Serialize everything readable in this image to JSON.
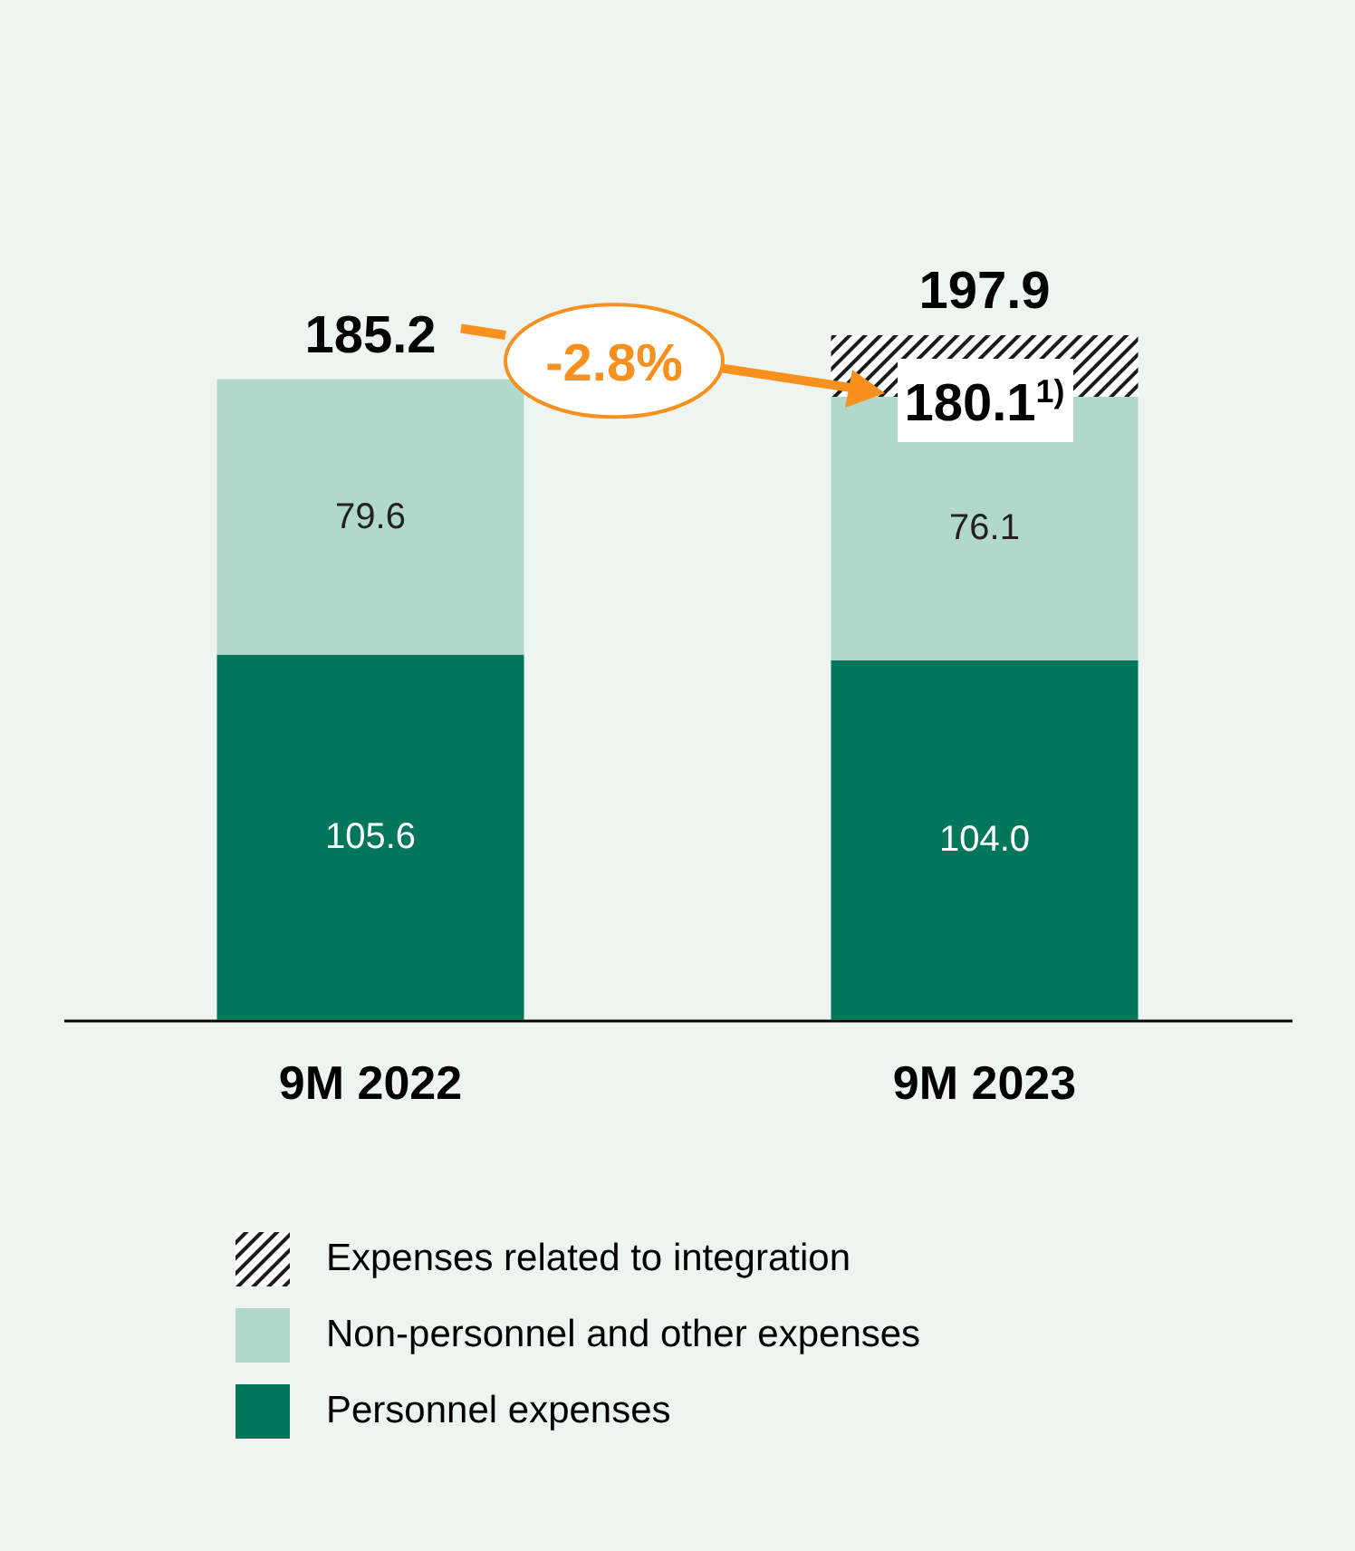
{
  "chart_data": {
    "type": "bar",
    "stacked": true,
    "categories": [
      "9M 2022",
      "9M 2023"
    ],
    "series": [
      {
        "name": "Personnel expenses",
        "color": "#00765a",
        "values": [
          105.6,
          104.0
        ],
        "value_labels": [
          "105.6",
          "104.0"
        ]
      },
      {
        "name": "Non-personnel and other expenses",
        "color": "#b2d8cc",
        "values": [
          79.6,
          76.1
        ],
        "value_labels": [
          "79.6",
          "76.1"
        ]
      },
      {
        "name": "Expenses related to integration",
        "color": "#1a1a1a",
        "values": [
          null,
          17.8
        ],
        "value_labels": [
          null,
          null
        ]
      }
    ],
    "totals": [
      "185.2",
      "197.9"
    ],
    "annotations": [
      "-2.8%",
      {
        "text": "180.1$^{1)}$",
        "x": "9M 2023",
        "y": 180.1
      }
    ],
    "legend": "bottom",
    "tick_labels": "x"
  }
}
